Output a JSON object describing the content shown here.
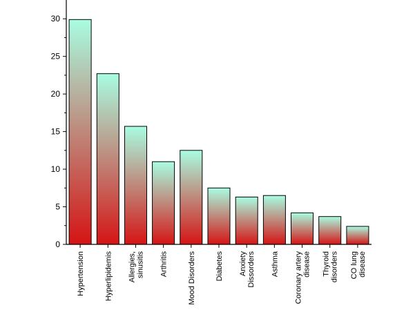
{
  "chart_data": {
    "type": "bar",
    "title": "",
    "xlabel": "",
    "ylabel": "",
    "ylim": [
      0,
      32.5
    ],
    "yticks": [
      0,
      5,
      10,
      15,
      20,
      25,
      30
    ],
    "grid": false,
    "legend": "none",
    "categories": [
      [
        "Hypertension"
      ],
      [
        "Hyperlipidemis"
      ],
      [
        "Allergies,",
        "sinusitis"
      ],
      [
        "Arthritis"
      ],
      [
        "Mood Disorders"
      ],
      [
        "Diabetes"
      ],
      [
        "Anxiety",
        "Dissorders"
      ],
      [
        "Asthma"
      ],
      [
        "Coronary artery",
        "disease"
      ],
      [
        "Thyroid",
        "disorders"
      ],
      [
        "CO lung",
        "disease"
      ]
    ],
    "values": [
      29.9,
      22.7,
      15.7,
      11.0,
      12.5,
      7.5,
      6.3,
      6.5,
      4.2,
      3.7,
      2.4
    ],
    "colors": {
      "bar_top": "#a8fde2",
      "bar_bottom": "#d51414",
      "bar_stroke": "#000000",
      "axis": "#000000"
    }
  }
}
